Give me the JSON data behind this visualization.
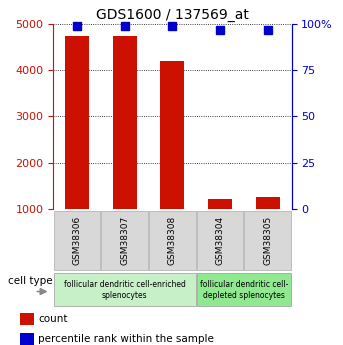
{
  "title": "GDS1600 / 137569_at",
  "samples": [
    "GSM38306",
    "GSM38307",
    "GSM38308",
    "GSM38304",
    "GSM38305"
  ],
  "counts": [
    4750,
    4750,
    4200,
    1200,
    1250
  ],
  "percentiles": [
    99,
    99,
    99,
    97,
    97
  ],
  "ylim_left": [
    1000,
    5000
  ],
  "ylim_right": [
    0,
    100
  ],
  "yticks_left": [
    1000,
    2000,
    3000,
    4000,
    5000
  ],
  "yticks_right": [
    0,
    25,
    50,
    75,
    100
  ],
  "yticklabels_right": [
    "0",
    "25",
    "50",
    "75",
    "100%"
  ],
  "bar_color": "#cc1100",
  "percentile_color": "#0000cc",
  "bar_width": 0.5,
  "group1_samples": [
    0,
    1,
    2
  ],
  "group2_samples": [
    3,
    4
  ],
  "group1_label": "follicular dendritic cell-enriched\nsplenocytes",
  "group2_label": "follicular dendritic cell-\ndepleted splenocytes",
  "group1_color": "#c8f0c8",
  "group2_color": "#90e890",
  "cell_type_label": "cell type",
  "legend_count_label": "count",
  "legend_percentile_label": "percentile rank within the sample",
  "xlabel_area_color": "#d8d8d8",
  "left_tick_color": "#cc1100",
  "right_tick_color": "#0000cc",
  "title_fontsize": 10,
  "tick_fontsize": 8,
  "sample_fontsize": 6.5,
  "group_fontsize": 5.5,
  "legend_fontsize": 7.5
}
